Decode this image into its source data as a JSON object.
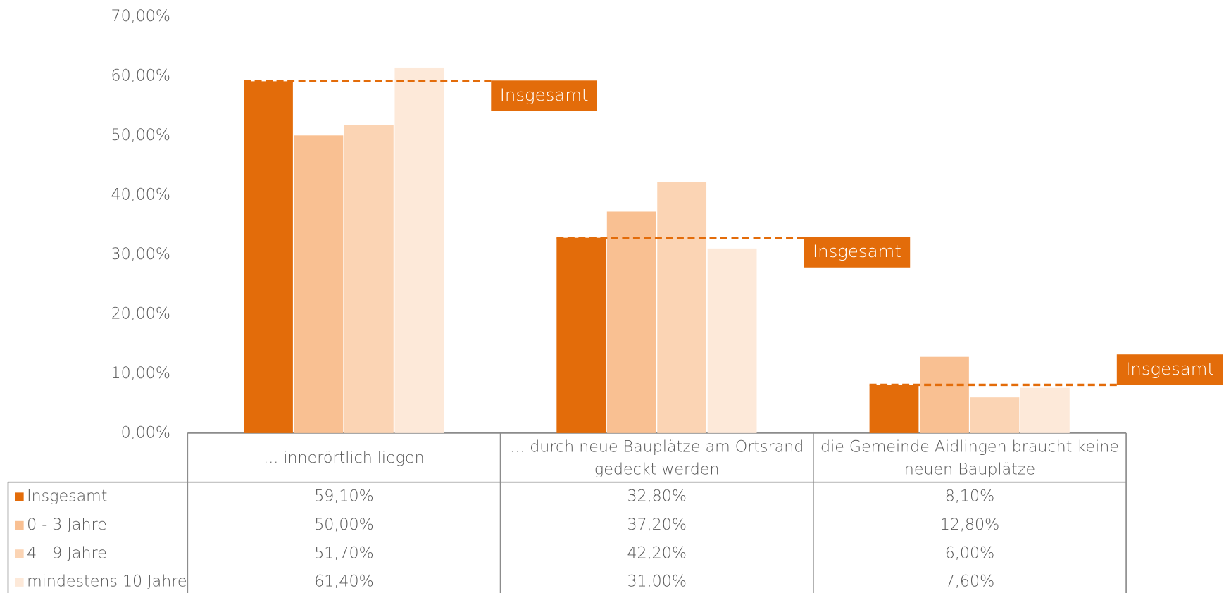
{
  "chart_data": {
    "type": "bar",
    "categories": [
      "... innerörtlich liegen",
      "... durch neue Bauplätze am Ortsrand gedeckt werden",
      "die Gemeinde Aidlingen braucht keine neuen Bauplätze"
    ],
    "series": [
      {
        "name": "Insgesamt",
        "color": "#e36c0a",
        "values": [
          59.1,
          32.8,
          8.1
        ],
        "value_labels": [
          "59,10%",
          "32,80%",
          "8,10%"
        ]
      },
      {
        "name": "0 - 3 Jahre",
        "color": "#f9c092",
        "values": [
          50.0,
          37.2,
          12.8
        ],
        "value_labels": [
          "50,00%",
          "37,20%",
          "12,80%"
        ]
      },
      {
        "name": "4 - 9 Jahre",
        "color": "#fbd4b4",
        "values": [
          51.7,
          42.2,
          6.0
        ],
        "value_labels": [
          "51,70%",
          "42,20%",
          "6,00%"
        ]
      },
      {
        "name": "mindestens 10 Jahre",
        "color": "#fde9d9",
        "values": [
          61.4,
          31.0,
          7.6
        ],
        "value_labels": [
          "61,40%",
          "31,00%",
          "7,60%"
        ]
      }
    ],
    "ylim": [
      0,
      70
    ],
    "yticks": [
      {
        "value": 0,
        "label": "0,00%"
      },
      {
        "value": 10,
        "label": "10,00%"
      },
      {
        "value": 20,
        "label": "20,00%"
      },
      {
        "value": 30,
        "label": "30,00%"
      },
      {
        "value": 40,
        "label": "40,00%"
      },
      {
        "value": 50,
        "label": "50,00%"
      },
      {
        "value": 60,
        "label": "60,00%"
      },
      {
        "value": 70,
        "label": "70,00%"
      }
    ],
    "grid": false
  }
}
